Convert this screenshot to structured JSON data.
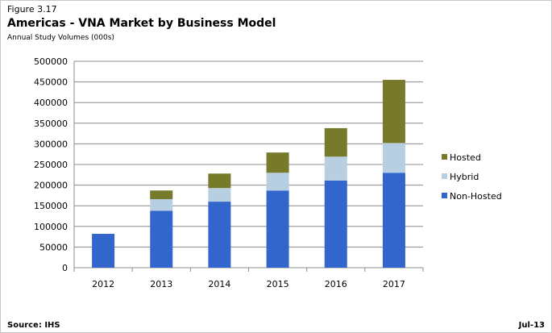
{
  "figure_label": "Figure 3.17",
  "title": "Americas - VNA Market by Business Model",
  "subtitle": "Annual Study Volumes (000s)",
  "source": "Source: IHS",
  "date": "Jul-13",
  "colors": {
    "Non-Hosted": "#3366cc",
    "Hybrid": "#b7cfe1",
    "Hosted": "#767a2a"
  },
  "chart_data": {
    "type": "bar",
    "stacked": true,
    "categories": [
      "2012",
      "2013",
      "2014",
      "2015",
      "2016",
      "2017"
    ],
    "series": [
      {
        "name": "Non-Hosted",
        "values": [
          82000,
          138000,
          160000,
          187000,
          211000,
          230000
        ]
      },
      {
        "name": "Hybrid",
        "values": [
          0,
          28000,
          33000,
          43000,
          58000,
          72000
        ]
      },
      {
        "name": "Hosted",
        "values": [
          0,
          21000,
          35000,
          49000,
          69000,
          153000
        ]
      }
    ],
    "ylim": [
      0,
      500000
    ],
    "yticks": [
      "0",
      "50000",
      "100000",
      "150000",
      "200000",
      "250000",
      "300000",
      "350000",
      "400000",
      "450000",
      "500000"
    ],
    "grid": true,
    "legend_position": "right",
    "legend_order": [
      "Hosted",
      "Hybrid",
      "Non-Hosted"
    ]
  }
}
